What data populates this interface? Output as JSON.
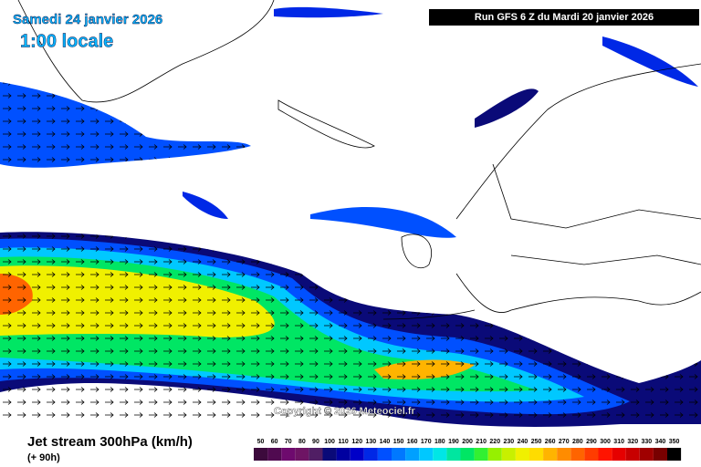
{
  "header": {
    "date": "Samedi 24 janvier 2026",
    "time": "1:00 locale",
    "run": "Run GFS 6 Z du Mardi 20 janvier 2026"
  },
  "copyright": "Copyright © 2026 Meteociel.fr",
  "footer": {
    "title": "Jet stream 300hPa (km/h)",
    "lead": "(+ 90h)"
  },
  "legend": {
    "values": [
      50,
      60,
      70,
      80,
      90,
      100,
      110,
      120,
      130,
      140,
      150,
      160,
      170,
      180,
      190,
      200,
      210,
      220,
      230,
      240,
      250,
      260,
      270,
      280,
      290,
      300,
      310,
      320,
      330,
      340,
      350
    ],
    "colors": [
      "#3c0a3c",
      "#500a50",
      "#6e0a6e",
      "#6e1464",
      "#501e64",
      "#0a0a78",
      "#0000a0",
      "#0000c8",
      "#0028e6",
      "#0050ff",
      "#0078ff",
      "#00a0ff",
      "#00c8ff",
      "#00e6e6",
      "#00e6a0",
      "#00e664",
      "#32f032",
      "#96f000",
      "#c8f000",
      "#f0f000",
      "#ffdc00",
      "#ffb400",
      "#ff8c00",
      "#ff6400",
      "#ff3c00",
      "#ff1400",
      "#e60000",
      "#c80000",
      "#a00000",
      "#780000",
      "#000000"
    ]
  }
}
